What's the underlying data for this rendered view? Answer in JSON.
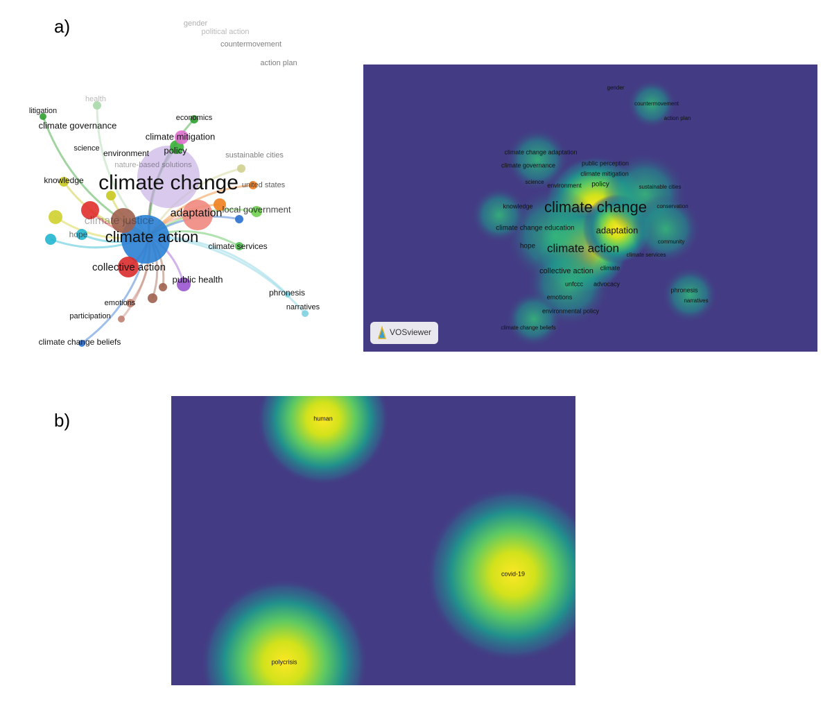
{
  "panel_a": {
    "label": "a)",
    "network_labels": [
      "gender",
      "political action",
      "countermovement",
      "action plan",
      "health",
      "litigation",
      "climate governance",
      "economics",
      "climate mitigation",
      "policy",
      "science",
      "environment",
      "sustainable cities",
      "nature-based solutions",
      "knowledge",
      "climate change",
      "united states",
      "adaptation",
      "local government",
      "climate justice",
      "climate action",
      "hope",
      "climate services",
      "collective action",
      "public health",
      "phronesis",
      "emotions",
      "narratives",
      "participation",
      "climate change beliefs"
    ],
    "density_labels": [
      "gender",
      "countermovement",
      "action plan",
      "climate change adaptation",
      "climate governance",
      "public perception",
      "climate mitigation",
      "science",
      "environment",
      "policy",
      "sustainable cities",
      "knowledge",
      "climate change",
      "conservation",
      "climate change education",
      "adaptation",
      "community",
      "hope",
      "climate action",
      "climate services",
      "collective action",
      "climate",
      "unfccc",
      "advocacy",
      "phronesis",
      "narratives",
      "emotions",
      "environmental policy",
      "climate change beliefs"
    ],
    "badge": "VOSviewer"
  },
  "panel_b": {
    "label": "b)",
    "density_labels": [
      "human",
      "covid-19",
      "polycrisis"
    ]
  }
}
